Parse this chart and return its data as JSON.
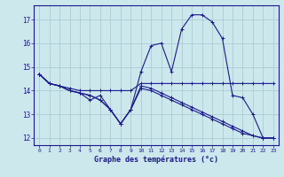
{
  "xlabel": "Graphe des températures (°c)",
  "background_color": "#cce8ec",
  "line_color": "#1a1a8c",
  "grid_color": "#aaccd4",
  "xlim": [
    -0.5,
    23.5
  ],
  "ylim": [
    11.7,
    17.6
  ],
  "yticks": [
    12,
    13,
    14,
    15,
    16,
    17
  ],
  "xticks": [
    0,
    1,
    2,
    3,
    4,
    5,
    6,
    7,
    8,
    9,
    10,
    11,
    12,
    13,
    14,
    15,
    16,
    17,
    18,
    19,
    20,
    21,
    22,
    23
  ],
  "series": [
    {
      "x": [
        0,
        1,
        2,
        3,
        4,
        5,
        6,
        7,
        8,
        9,
        10,
        11,
        12,
        13,
        14,
        15,
        16,
        17,
        18,
        19,
        20,
        21,
        22,
        23
      ],
      "y": [
        14.7,
        14.3,
        14.2,
        14.1,
        14.0,
        14.0,
        14.0,
        14.0,
        14.0,
        14.0,
        14.3,
        14.3,
        14.3,
        14.3,
        14.3,
        14.3,
        14.3,
        14.3,
        14.3,
        14.3,
        14.3,
        14.3,
        14.3,
        14.3
      ]
    },
    {
      "x": [
        0,
        1,
        2,
        3,
        4,
        5,
        6,
        7,
        8,
        9,
        10,
        11,
        12,
        13,
        14,
        15,
        16,
        17,
        18,
        19,
        20,
        21,
        22,
        23
      ],
      "y": [
        14.7,
        14.3,
        14.2,
        14.0,
        13.9,
        13.8,
        13.6,
        13.2,
        12.6,
        13.2,
        14.8,
        15.9,
        16.0,
        14.8,
        16.6,
        17.2,
        17.2,
        16.9,
        16.2,
        13.8,
        13.7,
        13.0,
        12.0,
        12.0
      ]
    },
    {
      "x": [
        0,
        1,
        2,
        3,
        4,
        5,
        6,
        7,
        8,
        9,
        10,
        11,
        12,
        13,
        14,
        15,
        16,
        17,
        18,
        19,
        20,
        21,
        22,
        23
      ],
      "y": [
        14.7,
        14.3,
        14.2,
        14.0,
        13.9,
        13.8,
        13.6,
        13.2,
        12.6,
        13.2,
        14.1,
        14.0,
        13.8,
        13.6,
        13.4,
        13.2,
        13.0,
        12.8,
        12.6,
        12.4,
        12.2,
        12.1,
        12.0,
        12.0
      ]
    },
    {
      "x": [
        0,
        1,
        2,
        3,
        4,
        5,
        6,
        7,
        8,
        9,
        10,
        11,
        12,
        13,
        14,
        15,
        16,
        17,
        18,
        19,
        20,
        21,
        22,
        23
      ],
      "y": [
        14.7,
        14.3,
        14.2,
        14.0,
        13.9,
        13.6,
        13.8,
        13.2,
        12.6,
        13.2,
        14.2,
        14.1,
        13.9,
        13.7,
        13.5,
        13.3,
        13.1,
        12.9,
        12.7,
        12.5,
        12.3,
        12.1,
        12.0,
        12.0
      ]
    }
  ]
}
